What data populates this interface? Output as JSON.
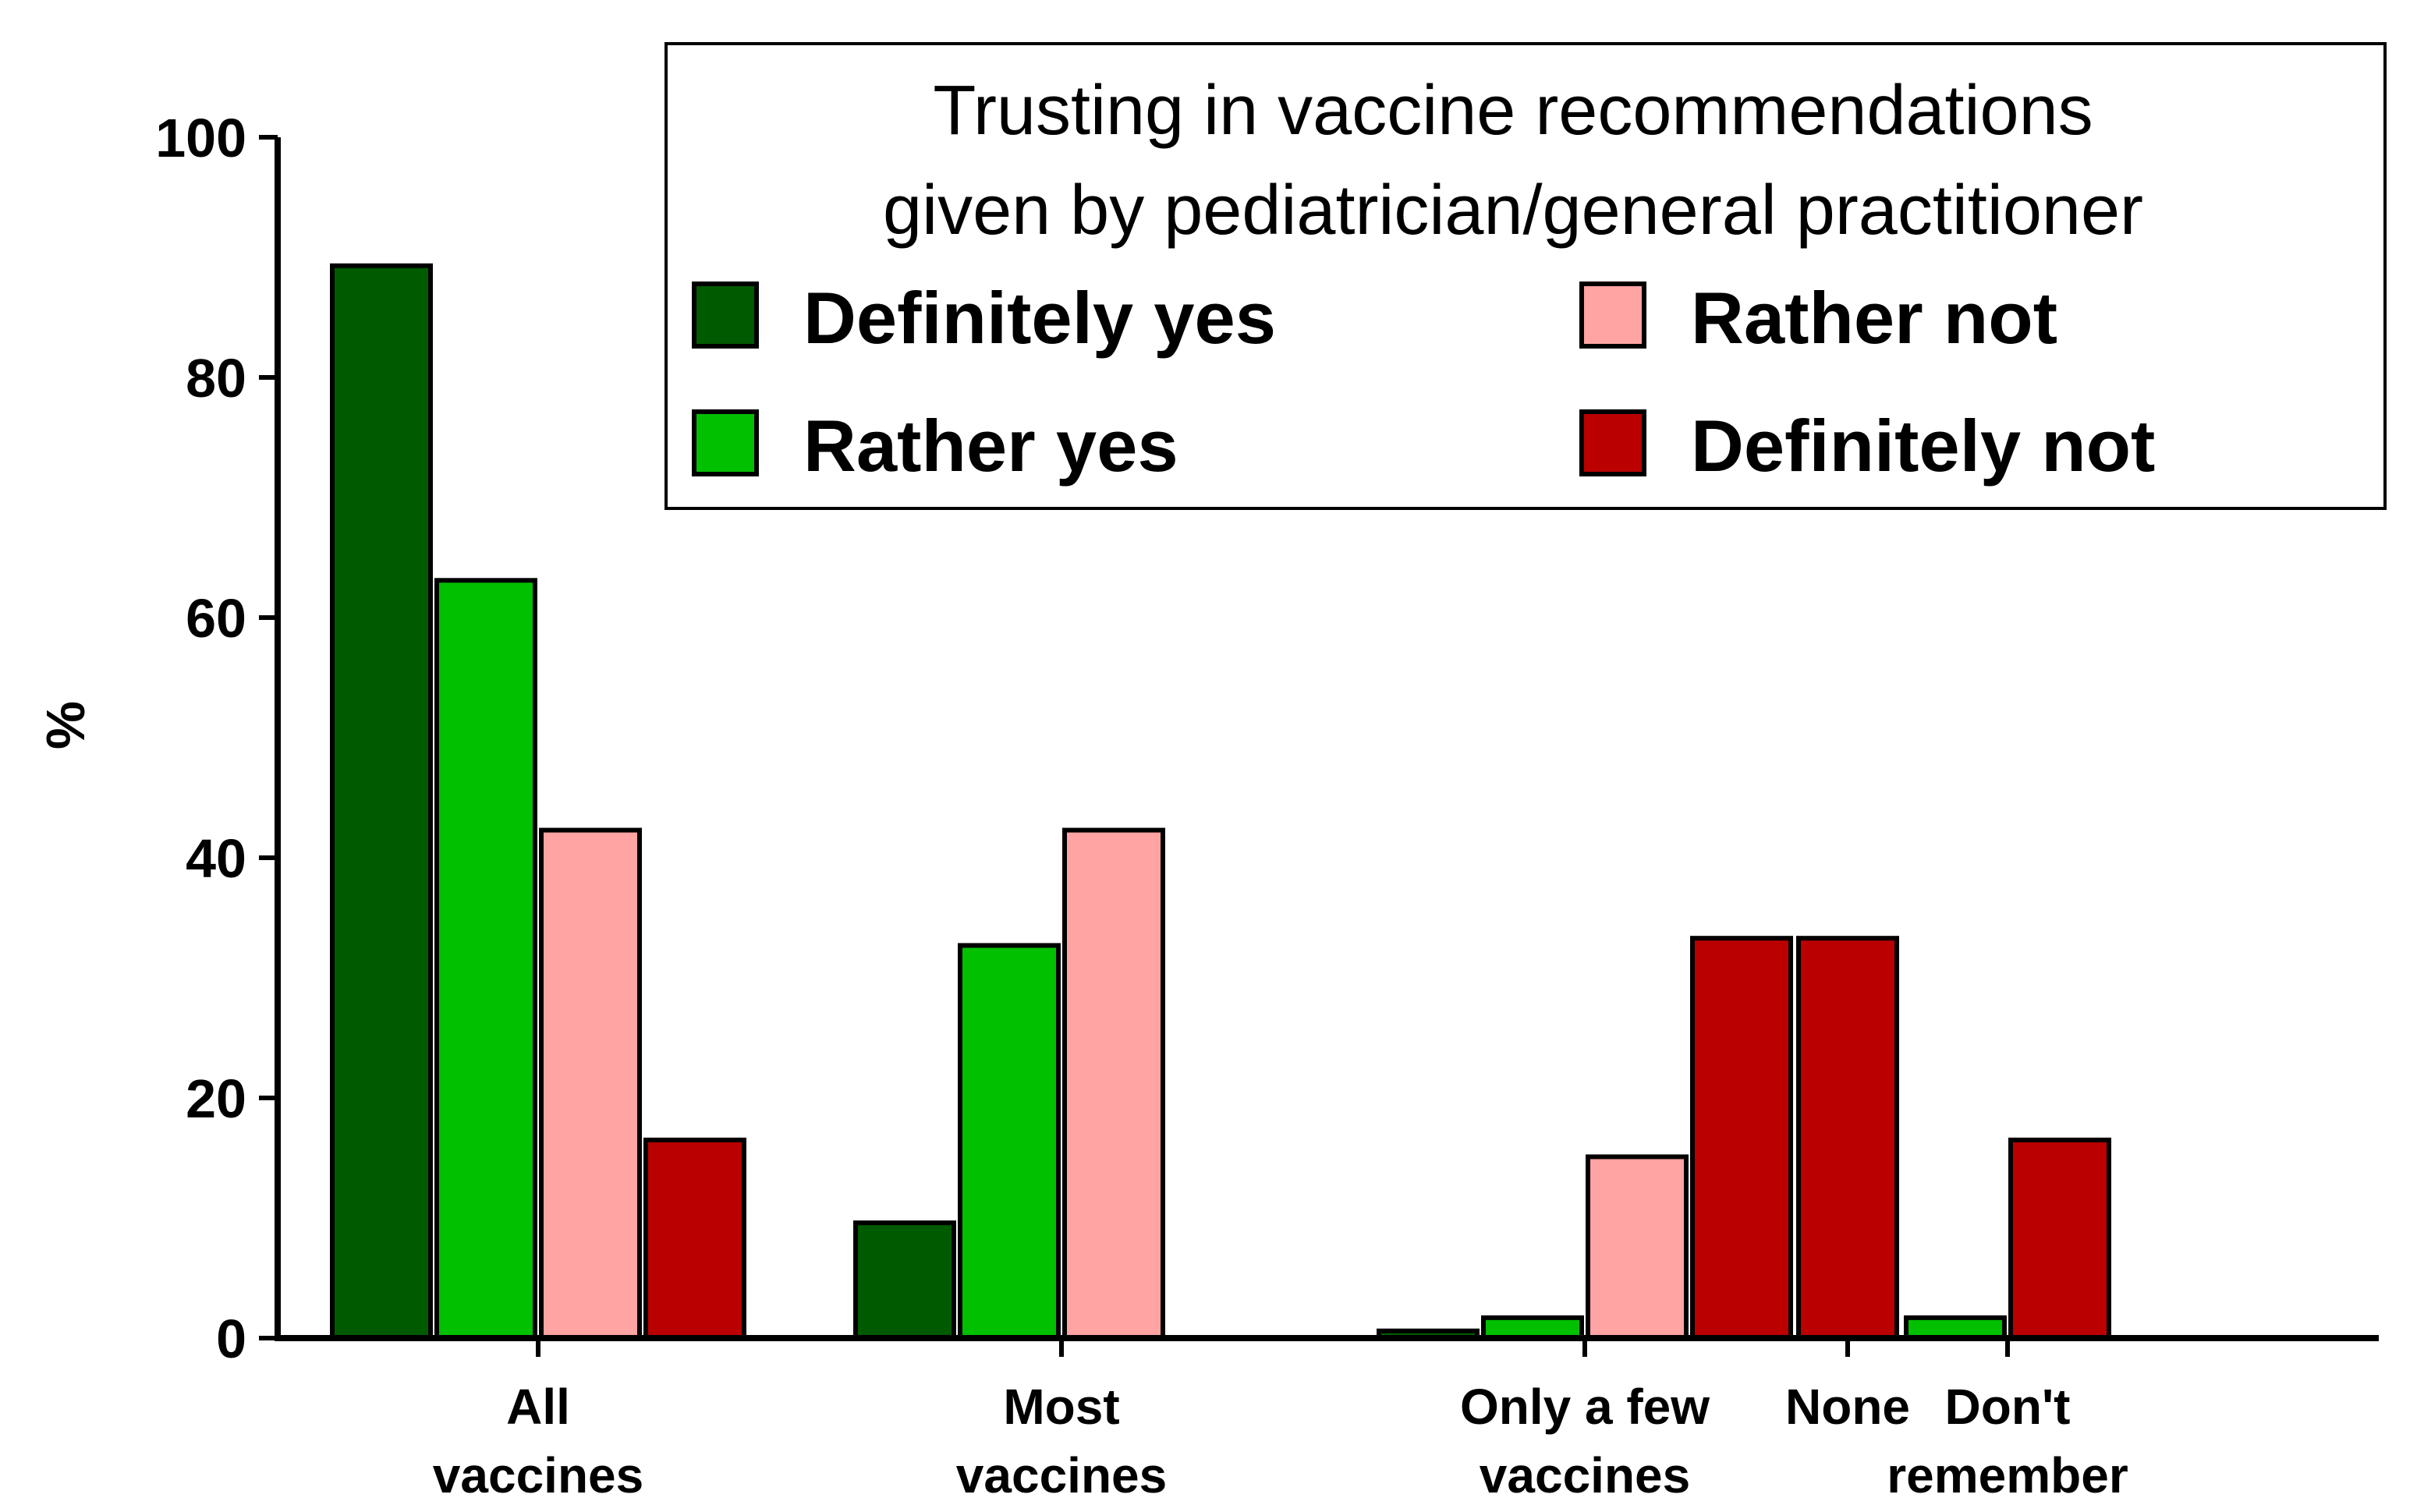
{
  "chart_data": {
    "type": "bar",
    "title": "",
    "xlabel": "",
    "ylabel": "%",
    "ylim": [
      0,
      100
    ],
    "yticks": [
      0,
      20,
      40,
      60,
      80,
      100
    ],
    "grid": false,
    "legend_position": "top-right",
    "legend_title": [
      "Trusting in vaccine recommendations",
      "given by pediatrician/general practitioner"
    ],
    "categories": [
      [
        "All",
        "vaccines"
      ],
      [
        "Most",
        "vaccines"
      ],
      [
        "Only a few",
        "vaccines"
      ],
      [
        "None"
      ],
      [
        "Don't",
        "remember"
      ]
    ],
    "series": [
      {
        "name": "Definitely yes",
        "color": "#005a00",
        "values": [
          89.3,
          9.6,
          0.6,
          0,
          0
        ]
      },
      {
        "name": "Rather yes",
        "color": "#00c000",
        "values": [
          63.1,
          32.7,
          1.7,
          0,
          1.7
        ]
      },
      {
        "name": "Rather not",
        "color": "#ffa3a3",
        "values": [
          42.3,
          42.3,
          15.1,
          0,
          0
        ]
      },
      {
        "name": "Definitely not",
        "color": "#bb0000",
        "values": [
          16.5,
          0,
          33.3,
          33.3,
          16.5
        ]
      }
    ]
  }
}
